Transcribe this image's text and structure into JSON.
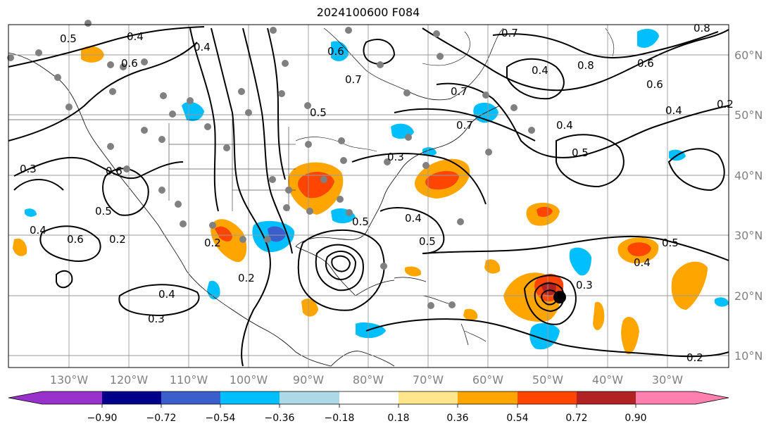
{
  "title": "2024100600 F084",
  "longitude_labels": [
    "130°W",
    "120°W",
    "110°W",
    "100°W",
    "90°W",
    "80°W",
    "70°W",
    "60°W",
    "50°W",
    "40°W",
    "30°W"
  ],
  "latitude_labels": [
    "60°N",
    "50°N",
    "40°N",
    "30°N",
    "20°N",
    "10°N"
  ],
  "colorbar": {
    "tick_labels": [
      "−0.90",
      "−0.72",
      "−0.54",
      "−0.36",
      "−0.18",
      "0.18",
      "0.36",
      "0.54",
      "0.72",
      "0.90"
    ],
    "colors": [
      "#9932cc",
      "#00008b",
      "#3a5fcd",
      "#00bfff",
      "#add8e6",
      "#ffffff",
      "#ffe68a",
      "#ffa500",
      "#ff4500",
      "#b22222",
      "#ff7fae"
    ]
  },
  "contour_labels": [
    "0.5",
    "0.4",
    "0.6",
    "0.4",
    "0.7",
    "0.8",
    "0.7",
    "0.4",
    "0.6",
    "0.8",
    "0.2",
    "0.3",
    "0.4",
    "0.6",
    "0.5",
    "0.2",
    "0.6",
    "0.4",
    "0.3",
    "0.5",
    "0.6",
    "0.4",
    "0.3",
    "0.2",
    "0.5",
    "0.7",
    "0.4",
    "0.5",
    "0.6",
    "0.4",
    "0.5",
    "0.4",
    "0.3",
    "0.2",
    "0.5",
    "0.7",
    "0.2"
  ],
  "land_color": "#ffffff",
  "station_dot_color": "#808080"
}
